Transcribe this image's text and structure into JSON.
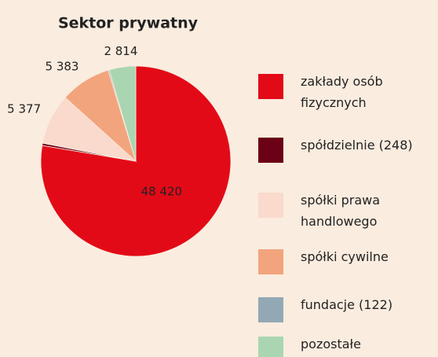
{
  "chart_data": {
    "type": "pie",
    "title": "Sektor prywatny",
    "categories": [
      "zakłady osób fizycznych",
      "spółdzielnie (248)",
      "spółki prawa handlowego",
      "spółki cywilne",
      "fundacje (122)",
      "pozostałe"
    ],
    "values": [
      48420,
      248,
      5377,
      5383,
      122,
      2814
    ],
    "value_labels": [
      "48 420",
      null,
      "5 377",
      "5 383",
      null,
      "2 814"
    ],
    "colors": [
      "#e30a17",
      "#6b0016",
      "#f9dacd",
      "#f2a47d",
      "#93a8b5",
      "#a9d6b1"
    ]
  }
}
